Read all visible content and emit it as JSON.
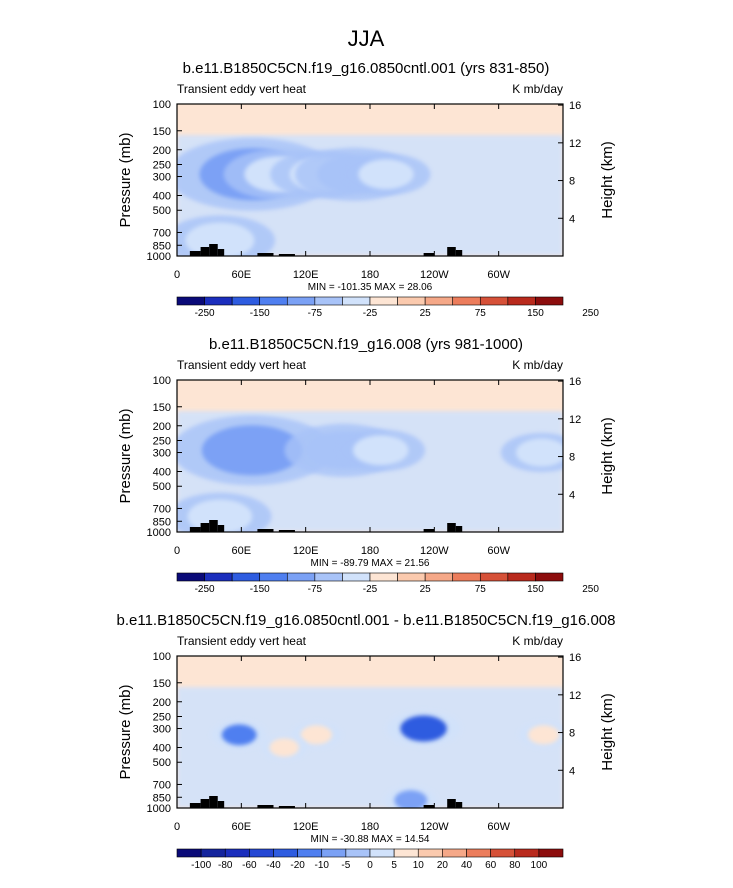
{
  "figure": {
    "title": "JJA"
  },
  "chart_data": [
    {
      "type": "heatmap",
      "title": "b.e11.B1850C5CN.f19_g16.0850cntl.001 (yrs 831-850)",
      "left_label": "Transient eddy vert heat",
      "right_label": "K mb/day",
      "xlabel": "",
      "ylabel": "Pressure (mb)",
      "ylabel_right": "Height (km)",
      "x_ticks": [
        "0",
        "60E",
        "120E",
        "180",
        "120W",
        "60W"
      ],
      "y_ticks": [
        "100",
        "150",
        "200",
        "250",
        "300",
        "400",
        "500",
        "700",
        "850",
        "1000"
      ],
      "height_ticks": [
        "4",
        "8",
        "12",
        "16"
      ],
      "stats": "MIN = -101.35  MAX =  28.06",
      "colorbar_labels": [
        "-250",
        "-150",
        "-75",
        "-25",
        "25",
        "75",
        "150",
        "250"
      ],
      "colorbar_colors": [
        "#0a0a78",
        "#1b2ebd",
        "#2e5ce0",
        "#4f7ff0",
        "#7ba1f5",
        "#a8c3f8",
        "#d1e2fb",
        "#fde5d4",
        "#fbcaae",
        "#f5a888",
        "#ec7d5c",
        "#d65138",
        "#b92a1d",
        "#8c0d0d"
      ],
      "cells": [
        {
          "lon": 70,
          "p": 290,
          "v": -90
        },
        {
          "lon": 95,
          "p": 290,
          "v": -50
        },
        {
          "lon": 135,
          "p": 290,
          "v": -45
        },
        {
          "lon": 165,
          "p": 290,
          "v": -55
        },
        {
          "lon": 195,
          "p": 290,
          "v": -35
        },
        {
          "lon": 40,
          "p": 790,
          "v": -50
        }
      ]
    },
    {
      "type": "heatmap",
      "title": "b.e11.B1850C5CN.f19_g16.008 (yrs 981-1000)",
      "left_label": "Transient eddy vert heat",
      "right_label": "K mb/day",
      "xlabel": "",
      "ylabel": "Pressure (mb)",
      "ylabel_right": "Height (km)",
      "x_ticks": [
        "0",
        "60E",
        "120E",
        "180",
        "120W",
        "60W"
      ],
      "y_ticks": [
        "100",
        "150",
        "200",
        "250",
        "300",
        "400",
        "500",
        "700",
        "850",
        "1000"
      ],
      "height_ticks": [
        "4",
        "8",
        "12",
        "16"
      ],
      "stats": "MIN = -89.79  MAX =  21.56",
      "colorbar_labels": [
        "-250",
        "-150",
        "-75",
        "-25",
        "25",
        "75",
        "150",
        "250"
      ],
      "colorbar_colors": [
        "#0a0a78",
        "#1b2ebd",
        "#2e5ce0",
        "#4f7ff0",
        "#7ba1f5",
        "#a8c3f8",
        "#d1e2fb",
        "#fde5d4",
        "#fbcaae",
        "#f5a888",
        "#ec7d5c",
        "#d65138",
        "#b92a1d",
        "#8c0d0d"
      ],
      "cells": [
        {
          "lon": 70,
          "p": 290,
          "v": -85
        },
        {
          "lon": 155,
          "p": 290,
          "v": -55
        },
        {
          "lon": 190,
          "p": 290,
          "v": -35
        },
        {
          "lon": 340,
          "p": 300,
          "v": -30
        },
        {
          "lon": 40,
          "p": 790,
          "v": -45
        }
      ]
    },
    {
      "type": "heatmap",
      "title": "b.e11.B1850C5CN.f19_g16.0850cntl.001 - b.e11.B1850C5CN.f19_g16.008",
      "left_label": "Transient eddy vert heat",
      "right_label": "K mb/day",
      "xlabel": "",
      "ylabel": "Pressure (mb)",
      "ylabel_right": "Height (km)",
      "x_ticks": [
        "0",
        "60E",
        "120E",
        "180",
        "120W",
        "60W"
      ],
      "y_ticks": [
        "100",
        "150",
        "200",
        "250",
        "300",
        "400",
        "500",
        "700",
        "850",
        "1000"
      ],
      "height_ticks": [
        "4",
        "8",
        "12",
        "16"
      ],
      "stats": "MIN = -30.88  MAX =  14.54",
      "colorbar_labels": [
        "-100",
        "-80",
        "-60",
        "-40",
        "-20",
        "-10",
        "-5",
        "0",
        "5",
        "10",
        "20",
        "40",
        "60",
        "80",
        "100"
      ],
      "colorbar_colors": [
        "#0a0a78",
        "#14249d",
        "#1b2ebd",
        "#2547d4",
        "#2e5ce0",
        "#4f7ff0",
        "#7ba1f5",
        "#a8c3f8",
        "#d1e2fb",
        "#fde5d4",
        "#fbcaae",
        "#f5a888",
        "#ec7d5c",
        "#d65138",
        "#b92a1d",
        "#8c0d0d"
      ],
      "cells": [
        {
          "lon": 58,
          "p": 330,
          "v": -12
        },
        {
          "lon": 130,
          "p": 330,
          "v": 8
        },
        {
          "lon": 230,
          "p": 300,
          "v": -25
        },
        {
          "lon": 218,
          "p": 890,
          "v": -10
        },
        {
          "lon": 342,
          "p": 330,
          "v": 8
        },
        {
          "lon": 100,
          "p": 400,
          "v": 6
        }
      ]
    }
  ]
}
